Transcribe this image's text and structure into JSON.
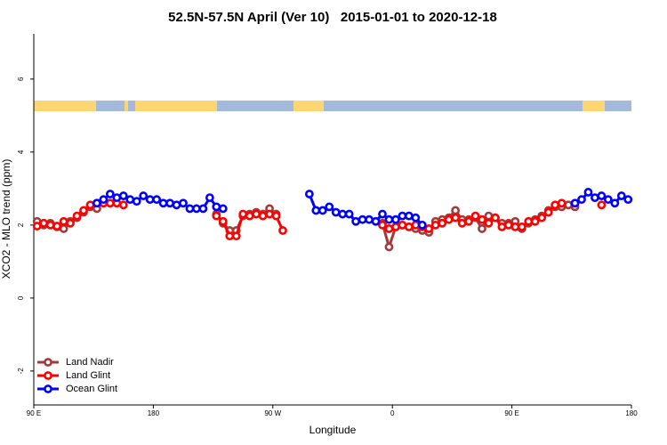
{
  "chart_data": {
    "type": "line",
    "title": "52.5N-57.5N April (Ver 10)   2015-01-01 to 2020-12-18",
    "x_label": "Longitude",
    "y_label": "XCO2 - MLO trend (ppm)",
    "xlim": [
      90,
      540
    ],
    "ylim": [
      -2.93,
      7.24
    ],
    "xticks": [
      {
        "value": 90,
        "label": "90 E"
      },
      180,
      {
        "value": 270,
        "label": "90 W"
      },
      {
        "value": 360,
        "label": "0"
      },
      {
        "value": 450,
        "label": "90 E"
      },
      {
        "value": 540,
        "label": "180"
      }
    ],
    "yticks": [
      -2,
      0,
      2,
      4,
      6
    ],
    "legend": "bottomleft",
    "series": [
      {
        "name": "Land Nadir",
        "color": "#a33a3a",
        "x": [
          92.5,
          97.5,
          102.5,
          107.5,
          112.5,
          117.5,
          122.5,
          127.5,
          132.5,
          137.5,
          142.5,
          227.5,
          232.5,
          237.5,
          242.5,
          247.5,
          252.5,
          257.5,
          262.5,
          267.5,
          272.5,
          277.5,
          352.5,
          357.5,
          362.5,
          367.5,
          372.5,
          377.5,
          382.5,
          387.5,
          392.5,
          397.5,
          402.5,
          407.5,
          412.5,
          417.5,
          422.5,
          427.5,
          432.5,
          437.5,
          442.5,
          447.5,
          452.5,
          457.5,
          462.5,
          467.5,
          472.5,
          477.5,
          482.5,
          487.5,
          492.5,
          497.5
        ],
        "values": [
          2.1,
          2.0,
          2.05,
          1.95,
          1.9,
          2.1,
          2.2,
          2.35,
          2.5,
          2.45,
          null,
          2.3,
          2.05,
          1.85,
          1.85,
          2.25,
          2.3,
          2.35,
          2.3,
          2.45,
          2.3,
          null,
          2.05,
          1.4,
          1.95,
          2.0,
          1.95,
          1.9,
          1.85,
          1.8,
          2.1,
          2.15,
          2.2,
          2.4,
          2.15,
          2.15,
          2.2,
          1.9,
          2.25,
          2.2,
          2.05,
          2.05,
          2.1,
          1.9,
          2.05,
          2.15,
          2.25,
          2.4,
          2.5,
          2.5,
          2.55,
          2.5
        ]
      },
      {
        "name": "Land Glint",
        "color": "#ff0000",
        "x": [
          92.5,
          97.5,
          102.5,
          107.5,
          112.5,
          117.5,
          122.5,
          127.5,
          132.5,
          137.5,
          142.5,
          147.5,
          152.5,
          157.5,
          162.5,
          227.5,
          232.5,
          237.5,
          242.5,
          247.5,
          252.5,
          257.5,
          262.5,
          267.5,
          272.5,
          277.5,
          282.5,
          352.5,
          357.5,
          362.5,
          367.5,
          372.5,
          377.5,
          382.5,
          387.5,
          392.5,
          397.5,
          402.5,
          407.5,
          412.5,
          417.5,
          422.5,
          427.5,
          432.5,
          437.5,
          442.5,
          447.5,
          452.5,
          457.5,
          462.5,
          467.5,
          472.5,
          477.5,
          482.5,
          487.5,
          492.5,
          517.5
        ],
        "values": [
          1.97,
          2.05,
          2.0,
          1.97,
          2.1,
          2.05,
          2.25,
          2.4,
          2.55,
          2.6,
          2.6,
          2.6,
          2.6,
          2.55,
          null,
          2.25,
          2.1,
          1.7,
          1.7,
          2.3,
          2.25,
          2.3,
          2.25,
          2.3,
          2.25,
          1.85,
          null,
          2.0,
          1.9,
          1.95,
          2.0,
          1.95,
          2.0,
          1.95,
          1.9,
          2.0,
          2.05,
          2.15,
          2.2,
          2.05,
          2.1,
          2.25,
          2.15,
          2.05,
          2.2,
          1.95,
          2.0,
          1.95,
          1.95,
          2.1,
          2.1,
          2.2,
          2.35,
          2.55,
          2.6,
          null,
          2.55
        ]
      },
      {
        "name": "Ocean Glint",
        "color": "#0000ff",
        "x": [
          137.5,
          142.5,
          147.5,
          152.5,
          157.5,
          162.5,
          167.5,
          172.5,
          177.5,
          182.5,
          187.5,
          192.5,
          197.5,
          202.5,
          207.5,
          212.5,
          217.5,
          222.5,
          227.5,
          232.5,
          237.5,
          297.5,
          302.5,
          307.5,
          312.5,
          317.5,
          322.5,
          327.5,
          332.5,
          337.5,
          342.5,
          347.5,
          352.5,
          357.5,
          362.5,
          367.5,
          372.5,
          377.5,
          382.5,
          387.5,
          497.5,
          502.5,
          507.5,
          512.5,
          517.5,
          522.5,
          527.5,
          532.5,
          537.5
        ],
        "values": [
          2.6,
          2.7,
          2.85,
          2.75,
          2.8,
          2.7,
          2.65,
          2.8,
          2.7,
          2.7,
          2.6,
          2.6,
          2.55,
          2.6,
          2.45,
          2.45,
          2.45,
          2.75,
          2.5,
          2.45,
          null,
          2.85,
          2.4,
          2.4,
          2.5,
          2.35,
          2.3,
          2.3,
          2.1,
          2.15,
          2.15,
          2.1,
          2.3,
          2.15,
          2.15,
          2.25,
          2.25,
          2.2,
          2.0,
          null,
          2.6,
          2.7,
          2.9,
          2.75,
          2.8,
          2.7,
          2.6,
          2.8,
          2.7
        ]
      }
    ]
  }
}
